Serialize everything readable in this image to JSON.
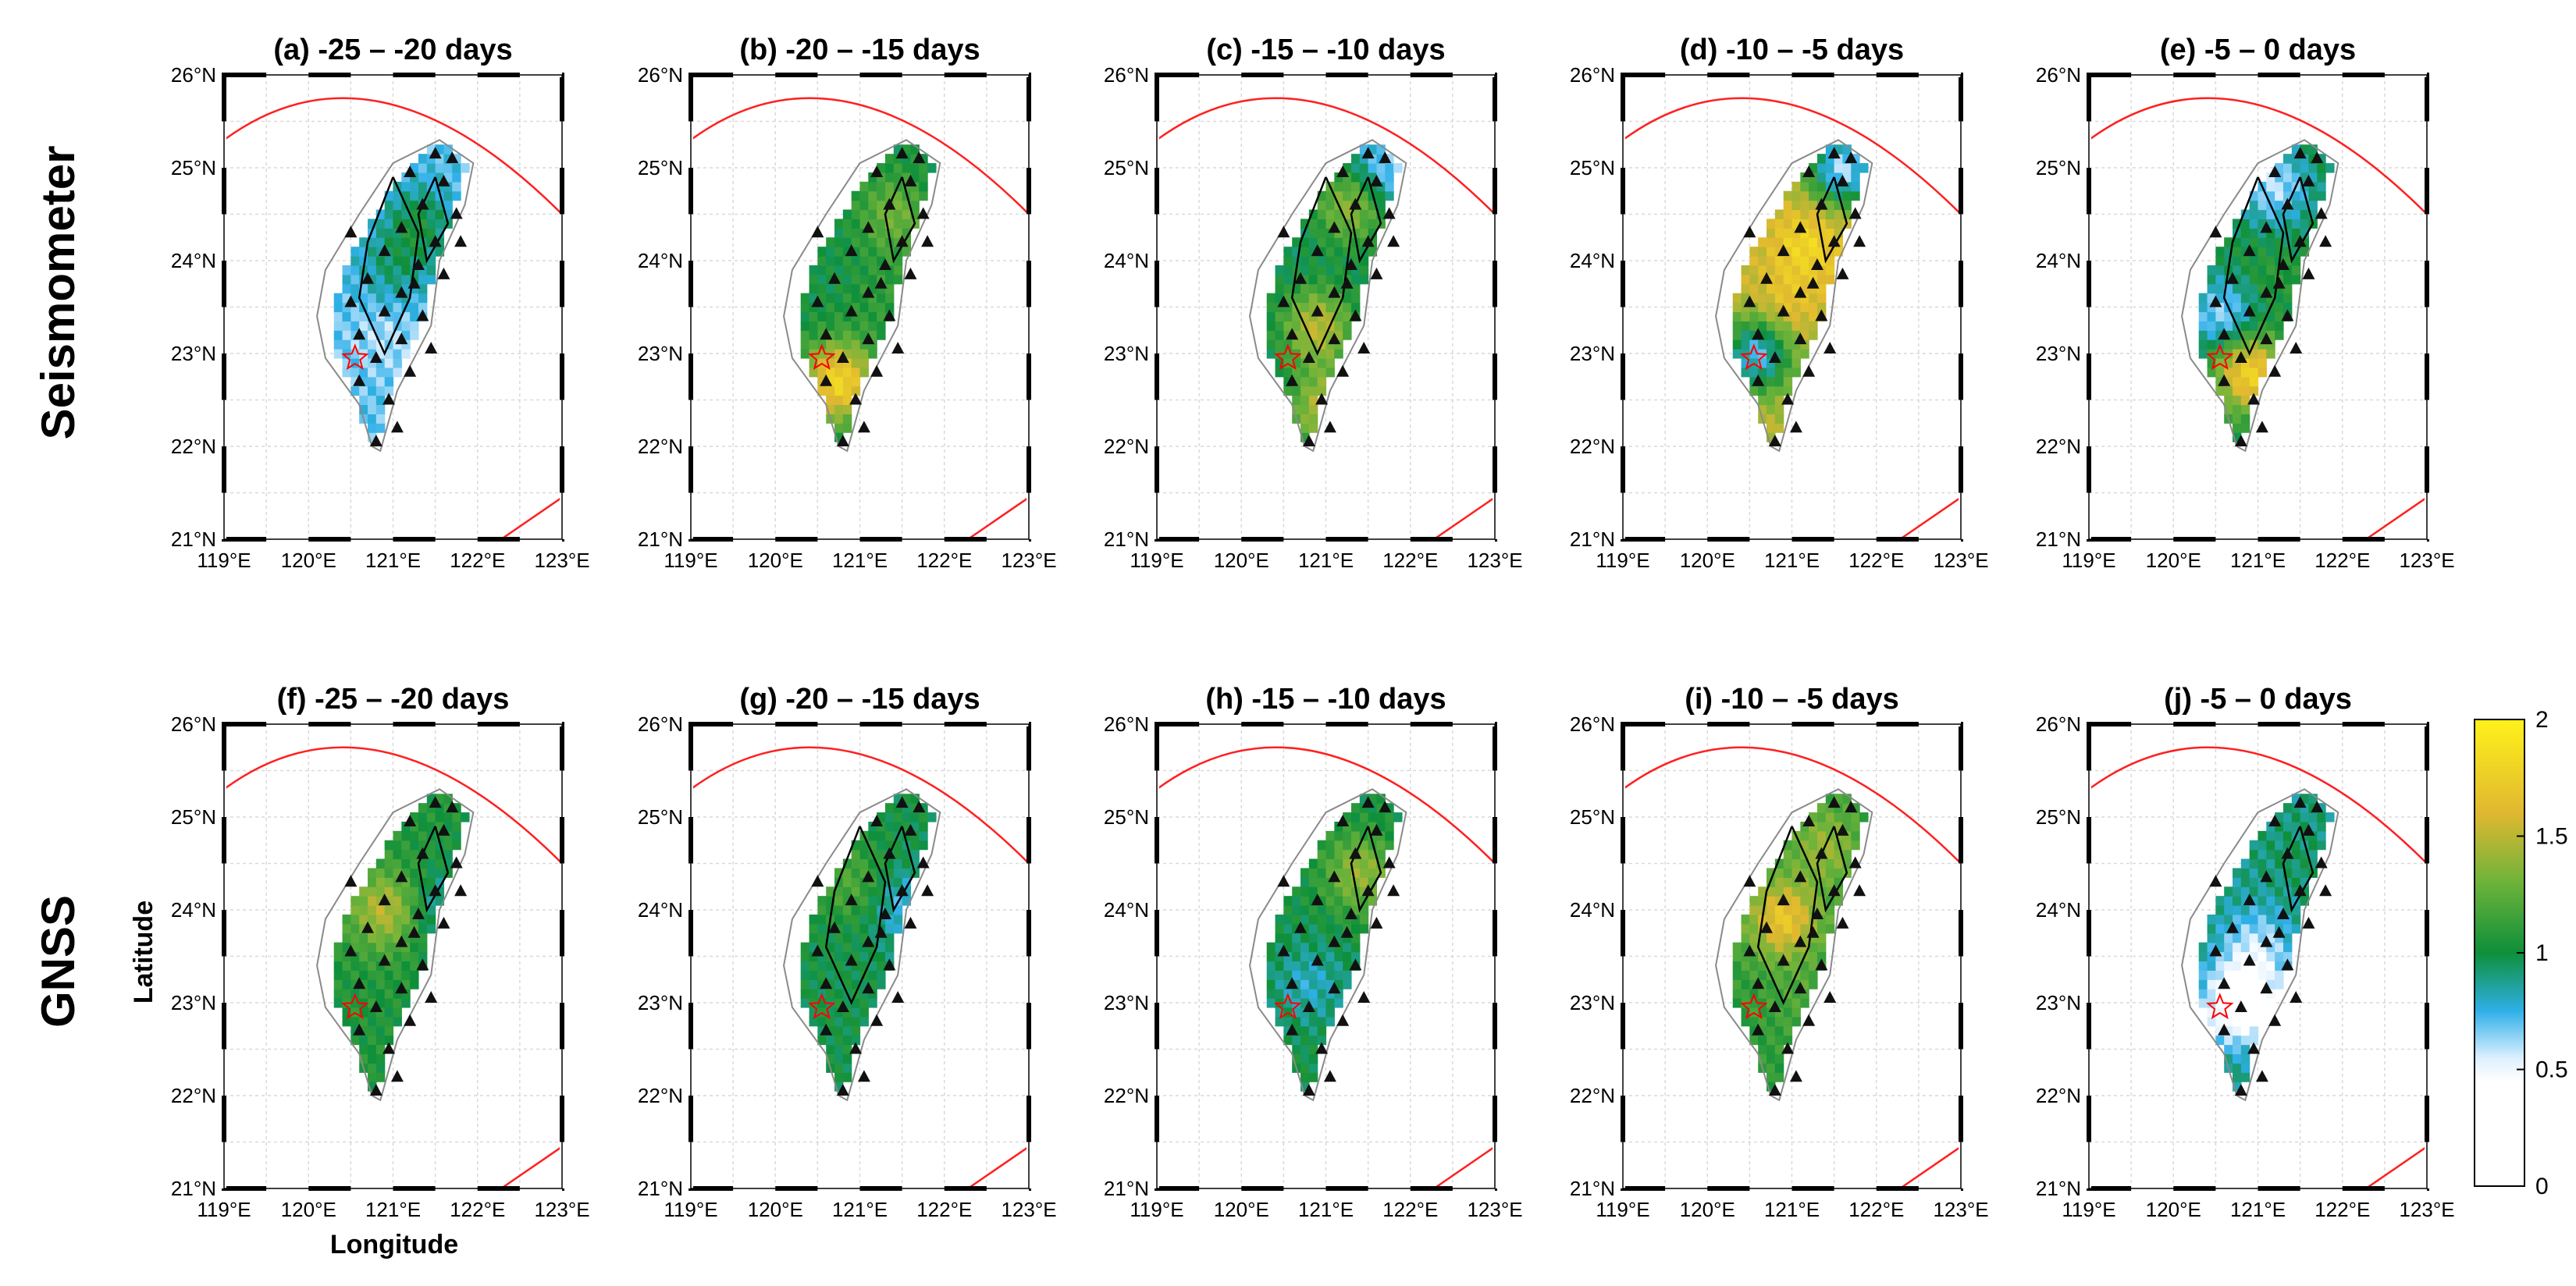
{
  "chart_data": {
    "type": "heatmap",
    "row_labels": [
      "Seismometer",
      "GNSS"
    ],
    "xlabel": "Longitude",
    "ylabel": "Latitude",
    "x_ticks": [
      "119°E",
      "120°E",
      "121°E",
      "122°E",
      "123°E"
    ],
    "y_ticks": [
      "21°N",
      "22°N",
      "23°N",
      "24°N",
      "25°N",
      "26°N"
    ],
    "xlim": [
      119,
      123
    ],
    "ylim": [
      21,
      26
    ],
    "colorbar": {
      "ticks": [
        "0",
        "0.5",
        "1",
        "1.5",
        "2"
      ],
      "range": [
        0,
        2
      ],
      "colors": [
        "#ffffff",
        "#dcefff",
        "#2fb0e8",
        "#0e8f3a",
        "#6db33a",
        "#e0b830",
        "#fff21a"
      ]
    },
    "contour_color": "#000000",
    "circle_color": "#ff0000",
    "panels": [
      {
        "label": "(a)",
        "period": "-25 –  -20 days",
        "row": "Seismometer",
        "hotspots": [
          {
            "lon": 121.3,
            "lat": 24.4,
            "v": 1.0
          },
          {
            "lon": 120.9,
            "lat": 23.2,
            "v": 0.6
          },
          {
            "lon": 121.0,
            "lat": 23.9,
            "v": 0.9
          }
        ],
        "base": 0.7
      },
      {
        "label": "(b)",
        "period": "-20 –  -15 days",
        "row": "Seismometer",
        "hotspots": [
          {
            "lon": 120.75,
            "lat": 22.7,
            "v": 1.8
          },
          {
            "lon": 121.4,
            "lat": 24.5,
            "v": 1.3
          },
          {
            "lon": 121.3,
            "lat": 23.6,
            "v": 1.1
          }
        ],
        "base": 1.0
      },
      {
        "label": "(c)",
        "period": "-15 –  -10 days",
        "row": "Seismometer",
        "hotspots": [
          {
            "lon": 120.9,
            "lat": 23.3,
            "v": 1.5
          },
          {
            "lon": 121.0,
            "lat": 22.4,
            "v": 1.5
          },
          {
            "lon": 121.3,
            "lat": 24.6,
            "v": 1.4
          },
          {
            "lon": 121.7,
            "lat": 25.0,
            "v": 0.6
          }
        ],
        "base": 0.95
      },
      {
        "label": "(d)",
        "period": "-10 –  -5 days",
        "row": "Seismometer",
        "hotspots": [
          {
            "lon": 121.2,
            "lat": 24.2,
            "v": 1.8
          },
          {
            "lon": 120.9,
            "lat": 23.5,
            "v": 1.7
          },
          {
            "lon": 121.6,
            "lat": 25.0,
            "v": 0.6
          },
          {
            "lon": 120.6,
            "lat": 23.0,
            "v": 0.7
          }
        ],
        "base": 1.5
      },
      {
        "label": "(e)",
        "period": "-5 –   0 days",
        "row": "Seismometer",
        "hotspots": [
          {
            "lon": 120.9,
            "lat": 22.8,
            "v": 1.8
          },
          {
            "lon": 121.2,
            "lat": 24.8,
            "v": 0.6
          },
          {
            "lon": 120.6,
            "lat": 23.4,
            "v": 0.6
          },
          {
            "lon": 121.1,
            "lat": 23.8,
            "v": 1.1
          }
        ],
        "base": 1.0
      },
      {
        "label": "(f)",
        "period": "-25 –  -20 days",
        "row": "GNSS",
        "hotspots": [
          {
            "lon": 120.9,
            "lat": 24.0,
            "v": 1.5
          },
          {
            "lon": 121.6,
            "lat": 24.0,
            "v": 0.8
          }
        ],
        "base": 1.05
      },
      {
        "label": "(g)",
        "period": "-20 –  -15 days",
        "row": "GNSS",
        "hotspots": [
          {
            "lon": 121.6,
            "lat": 24.0,
            "v": 0.7
          },
          {
            "lon": 120.9,
            "lat": 24.3,
            "v": 1.2
          }
        ],
        "base": 1.0
      },
      {
        "label": "(h)",
        "period": "-15 –  -10 days",
        "row": "GNSS",
        "hotspots": [
          {
            "lon": 121.4,
            "lat": 24.4,
            "v": 1.4
          },
          {
            "lon": 120.8,
            "lat": 23.2,
            "v": 0.8
          }
        ],
        "base": 1.0
      },
      {
        "label": "(i)",
        "period": "-10 –  -5 days",
        "row": "GNSS",
        "hotspots": [
          {
            "lon": 120.9,
            "lat": 23.9,
            "v": 1.7
          },
          {
            "lon": 121.4,
            "lat": 24.7,
            "v": 1.4
          },
          {
            "lon": 121.2,
            "lat": 23.0,
            "v": 1.2
          }
        ],
        "base": 1.1
      },
      {
        "label": "(j)",
        "period": "-5 –   0 days",
        "row": "GNSS",
        "hotspots": [
          {
            "lon": 120.8,
            "lat": 23.0,
            "v": 0.2
          },
          {
            "lon": 121.0,
            "lat": 23.6,
            "v": 0.6
          },
          {
            "lon": 121.5,
            "lat": 24.5,
            "v": 0.95
          }
        ],
        "base": 0.9
      }
    ]
  }
}
